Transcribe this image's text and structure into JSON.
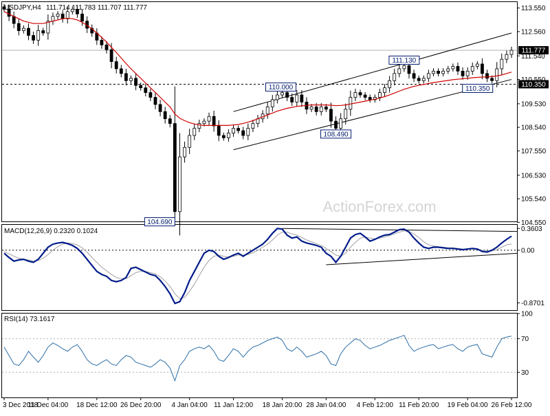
{
  "chart_data": [
    {
      "type": "candlestick",
      "title": "USDJPY,H4",
      "ohlc": "111.714 111.783 111.707 111.777",
      "ylim": [
        104.59,
        113.8
      ],
      "yticks": [
        "113.550",
        "112.560",
        "111.540",
        "110.550",
        "109.530",
        "108.540",
        "107.550",
        "106.530",
        "105.540",
        "104.550"
      ],
      "current_price": "111.777",
      "level_line": "110.350",
      "close": [
        113.5,
        113.2,
        112.9,
        112.6,
        112.7,
        112.4,
        112.2,
        112.6,
        112.5,
        113.0,
        113.2,
        113.3,
        113.1,
        113.4,
        113.5,
        113.3,
        113.0,
        112.7,
        112.5,
        112.2,
        112.0,
        111.8,
        111.3,
        111.0,
        110.8,
        110.5,
        110.6,
        110.3,
        110.2,
        110.0,
        109.8,
        109.5,
        109.2,
        108.9,
        108.7,
        105.0,
        107.3,
        107.7,
        108.2,
        108.5,
        108.7,
        108.8,
        109.0,
        108.6,
        108.2,
        108.1,
        108.3,
        108.5,
        108.4,
        108.2,
        108.5,
        108.7,
        108.9,
        109.1,
        109.4,
        109.7,
        109.9,
        110.0,
        109.8,
        109.6,
        109.9,
        109.6,
        109.3,
        109.4,
        109.2,
        109.4,
        109.3,
        108.8,
        108.5,
        108.9,
        109.3,
        109.8,
        110.0,
        109.9,
        109.8,
        109.7,
        109.8,
        110.0,
        110.2,
        110.5,
        110.8,
        111.0,
        111.13,
        110.8,
        110.6,
        110.5,
        110.6,
        110.8,
        110.9,
        110.8,
        110.9,
        111.0,
        111.1,
        110.9,
        110.7,
        110.9,
        111.1,
        111.2,
        110.8,
        110.6,
        110.5,
        111.0,
        111.4,
        111.6,
        111.777
      ],
      "ma": [
        113.4,
        113.3,
        113.2,
        113.1,
        113.0,
        112.95,
        112.9,
        112.9,
        112.9,
        112.95,
        113.0,
        113.05,
        113.1,
        113.12,
        113.1,
        113.05,
        112.95,
        112.82,
        112.68,
        112.5,
        112.32,
        112.12,
        111.9,
        111.68,
        111.45,
        111.22,
        111.0,
        110.8,
        110.6,
        110.4,
        110.2,
        110.0,
        109.8,
        109.6,
        109.4,
        109.1,
        108.92,
        108.82,
        108.74,
        108.68,
        108.64,
        108.62,
        108.62,
        108.62,
        108.62,
        108.62,
        108.62,
        108.64,
        108.66,
        108.7,
        108.76,
        108.82,
        108.9,
        108.98,
        109.06,
        109.14,
        109.22,
        109.28,
        109.34,
        109.38,
        109.42,
        109.44,
        109.46,
        109.48,
        109.48,
        109.48,
        109.48,
        109.47,
        109.45,
        109.46,
        109.48,
        109.52,
        109.56,
        109.6,
        109.64,
        109.68,
        109.72,
        109.77,
        109.83,
        109.9,
        109.98,
        110.06,
        110.14,
        110.2,
        110.26,
        110.3,
        110.34,
        110.38,
        110.42,
        110.45,
        110.48,
        110.51,
        110.54,
        110.56,
        110.58,
        110.6,
        110.62,
        110.64,
        110.65,
        110.66,
        110.67,
        110.7,
        110.74,
        110.8,
        110.86
      ],
      "channel": {
        "upper": [
          [
            "11 Jan 12:00",
            109.2
          ],
          [
            "26 Feb 12:00",
            112.5
          ]
        ],
        "lower": [
          [
            "11 Jan 12:00",
            107.6
          ],
          [
            "26 Feb 12:00",
            110.55
          ]
        ]
      },
      "annotations": [
        "104.690",
        "110.000",
        "108.490",
        "111.130",
        "110.350"
      ],
      "annotation_values": [
        104.69,
        110.0,
        108.49,
        111.13,
        110.35
      ],
      "xlabels": [
        "3 Dec 2018",
        "11 Dec 04:00",
        "18 Dec 12:00",
        "26 Dec 20:00",
        "4 Jan 04:00",
        "11 Jan 12:00",
        "18 Jan 20:00",
        "28 Jan 04:00",
        "4 Feb 12:00",
        "11 Feb 20:00",
        "19 Feb 04:00",
        "26 Feb 12:00"
      ],
      "watermark": "ActionForex.com"
    },
    {
      "type": "line",
      "title": "MACD(12,26,9) 0.2320 0.1024",
      "ylim": [
        -0.99,
        0.42
      ],
      "yticks": [
        "0.3603",
        "0.00",
        "-0.8701"
      ],
      "macd": [
        -0.05,
        -0.12,
        -0.18,
        -0.16,
        -0.15,
        -0.18,
        -0.2,
        -0.15,
        -0.05,
        0.05,
        0.1,
        0.12,
        0.13,
        0.11,
        0.08,
        0.03,
        -0.05,
        -0.15,
        -0.25,
        -0.35,
        -0.4,
        -0.43,
        -0.5,
        -0.52,
        -0.5,
        -0.45,
        -0.3,
        -0.28,
        -0.32,
        -0.36,
        -0.4,
        -0.42,
        -0.5,
        -0.6,
        -0.72,
        -0.88,
        -0.85,
        -0.7,
        -0.5,
        -0.35,
        -0.2,
        -0.05,
        0.0,
        -0.02,
        -0.1,
        -0.15,
        -0.12,
        -0.08,
        -0.05,
        -0.1,
        -0.05,
        0.0,
        0.05,
        0.1,
        0.18,
        0.28,
        0.36,
        0.35,
        0.25,
        0.2,
        0.22,
        0.15,
        0.12,
        0.1,
        0.08,
        0.05,
        -0.05,
        -0.1,
        -0.2,
        -0.1,
        0.05,
        0.2,
        0.26,
        0.28,
        0.22,
        0.15,
        0.18,
        0.22,
        0.25,
        0.26,
        0.3,
        0.34,
        0.35,
        0.3,
        0.2,
        0.12,
        0.05,
        0.03,
        0.05,
        0.05,
        0.04,
        0.03,
        0.03,
        0.02,
        0.01,
        0.02,
        0.03,
        0.02,
        -0.02,
        -0.03,
        0.0,
        0.05,
        0.12,
        0.18,
        0.232
      ],
      "signal": [
        -0.02,
        -0.06,
        -0.1,
        -0.13,
        -0.15,
        -0.16,
        -0.18,
        -0.17,
        -0.13,
        -0.07,
        0.0,
        0.06,
        0.1,
        0.12,
        0.11,
        0.09,
        0.04,
        -0.03,
        -0.12,
        -0.2,
        -0.28,
        -0.34,
        -0.4,
        -0.45,
        -0.47,
        -0.47,
        -0.42,
        -0.37,
        -0.35,
        -0.35,
        -0.37,
        -0.39,
        -0.44,
        -0.51,
        -0.6,
        -0.72,
        -0.8,
        -0.78,
        -0.68,
        -0.56,
        -0.42,
        -0.28,
        -0.17,
        -0.1,
        -0.08,
        -0.1,
        -0.11,
        -0.1,
        -0.08,
        -0.08,
        -0.07,
        -0.04,
        0.0,
        0.05,
        0.1,
        0.17,
        0.25,
        0.3,
        0.3,
        0.27,
        0.25,
        0.21,
        0.17,
        0.14,
        0.11,
        0.08,
        0.03,
        -0.02,
        -0.08,
        -0.1,
        -0.05,
        0.05,
        0.13,
        0.2,
        0.22,
        0.2,
        0.19,
        0.2,
        0.22,
        0.24,
        0.27,
        0.3,
        0.32,
        0.31,
        0.27,
        0.21,
        0.14,
        0.09,
        0.07,
        0.06,
        0.05,
        0.04,
        0.04,
        0.03,
        0.02,
        0.02,
        0.02,
        0.02,
        0.0,
        -0.01,
        -0.01,
        0.01,
        0.05,
        0.09,
        0.1024
      ],
      "trendlines": {
        "upper": [
          [
            "18 Jan 20:00",
            0.36
          ],
          [
            "26 Feb 12:00",
            0.31
          ]
        ],
        "lower": [
          [
            "28 Jan 04:00",
            -0.24
          ],
          [
            "26 Feb 12:00",
            -0.05
          ]
        ]
      }
    },
    {
      "type": "line",
      "title": "RSI(14) 73.1617",
      "ylim": [
        0,
        100
      ],
      "yticks": [
        "100",
        "70",
        "30",
        "0"
      ],
      "levels": [
        70,
        30
      ],
      "values": [
        60,
        50,
        40,
        38,
        45,
        55,
        48,
        42,
        50,
        60,
        65,
        62,
        58,
        55,
        60,
        63,
        55,
        45,
        40,
        38,
        42,
        45,
        40,
        38,
        45,
        50,
        48,
        42,
        40,
        38,
        36,
        40,
        45,
        42,
        35,
        20,
        38,
        45,
        55,
        58,
        60,
        58,
        62,
        55,
        45,
        43,
        50,
        58,
        55,
        48,
        55,
        60,
        62,
        65,
        68,
        70,
        72,
        68,
        58,
        55,
        60,
        55,
        48,
        50,
        52,
        55,
        50,
        40,
        38,
        52,
        60,
        65,
        70,
        68,
        62,
        58,
        60,
        62,
        65,
        68,
        70,
        72,
        74,
        62,
        55,
        58,
        60,
        62,
        63,
        58,
        60,
        62,
        63,
        58,
        55,
        60,
        62,
        63,
        52,
        50,
        48,
        60,
        70,
        72,
        73.16
      ]
    }
  ]
}
